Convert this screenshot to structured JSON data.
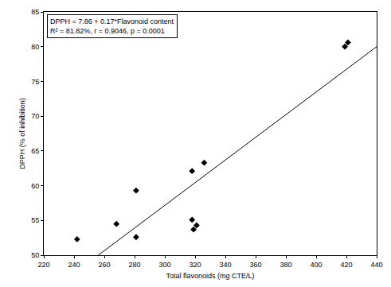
{
  "chart_data": {
    "type": "scatter",
    "x_label": "Total flavonoids (mg CTE/L)",
    "y_label": "DPPH (% of inhibition)",
    "annotations": [
      "DPPH = 7.86 + 0.17*Flavonoid content",
      "R² = 81.82%, r = 0.9046, p = 0.0001"
    ],
    "xlim": [
      220,
      440
    ],
    "xticks": [
      220,
      240,
      260,
      280,
      300,
      320,
      340,
      360,
      380,
      400,
      420,
      440
    ],
    "ylim": [
      50,
      85
    ],
    "yticks": [
      50,
      55,
      60,
      65,
      70,
      75,
      80,
      85
    ],
    "grid": false,
    "series": [
      {
        "type": "scatter",
        "marker": "diamond",
        "color": "#000000",
        "x": [
          242,
          268,
          281,
          281,
          318,
          318,
          319,
          321,
          326,
          419,
          421
        ],
        "values": [
          52.3,
          54.5,
          59.3,
          52.6,
          62.1,
          55.1,
          53.7,
          54.3,
          63.3,
          80.0,
          80.6
        ]
      },
      {
        "type": "line",
        "line_style": "solid",
        "color": "#000000",
        "x": [
          256,
          440
        ],
        "values": [
          50,
          80
        ]
      }
    ]
  }
}
